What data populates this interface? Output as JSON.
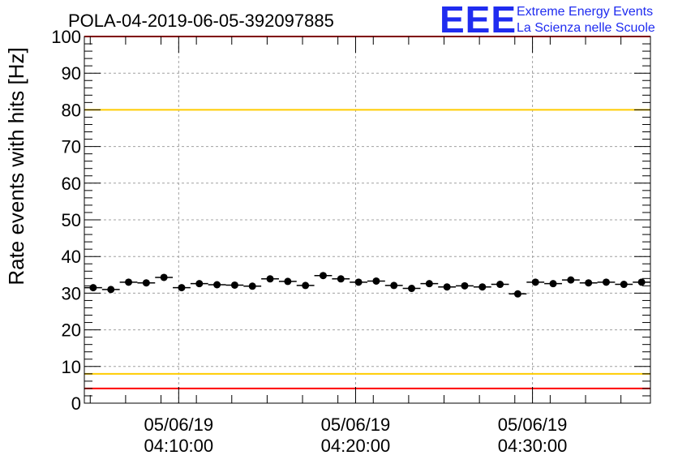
{
  "chart_data": {
    "type": "scatter",
    "title": "POLA-04-2019-06-05-392097885",
    "xlabel": "",
    "ylabel": "Rate events with hits [Hz]",
    "x_range": [
      "2019-06-05T04:04:40",
      "2019-06-05T04:36:40"
    ],
    "ylim": [
      0,
      100
    ],
    "y_ticks": [
      "0",
      "10",
      "20",
      "30",
      "40",
      "50",
      "60",
      "70",
      "80",
      "90",
      "100"
    ],
    "x_ticks": [
      {
        "time": "2019-06-05T04:10:00",
        "date_label": "05/06/19",
        "time_label": "04:10:00"
      },
      {
        "time": "2019-06-05T04:20:00",
        "date_label": "05/06/19",
        "time_label": "04:20:00"
      },
      {
        "time": "2019-06-05T04:30:00",
        "date_label": "05/06/19",
        "time_label": "04:30:00"
      }
    ],
    "grid": true,
    "reference_lines": [
      {
        "y": 100,
        "color": "#ff0000"
      },
      {
        "y": 80,
        "color": "#ffcc00"
      },
      {
        "y": 8,
        "color": "#ffcc00"
      },
      {
        "y": 4,
        "color": "#ff0000"
      }
    ],
    "series": [
      {
        "color": "#000000",
        "x": [
          "2019-06-05T04:05:10",
          "2019-06-05T04:06:10",
          "2019-06-05T04:07:10",
          "2019-06-05T04:08:10",
          "2019-06-05T04:09:10",
          "2019-06-05T04:10:10",
          "2019-06-05T04:11:10",
          "2019-06-05T04:12:10",
          "2019-06-05T04:13:10",
          "2019-06-05T04:14:10",
          "2019-06-05T04:15:10",
          "2019-06-05T04:16:10",
          "2019-06-05T04:17:10",
          "2019-06-05T04:18:10",
          "2019-06-05T04:19:10",
          "2019-06-05T04:20:10",
          "2019-06-05T04:21:10",
          "2019-06-05T04:22:10",
          "2019-06-05T04:23:10",
          "2019-06-05T04:24:10",
          "2019-06-05T04:25:10",
          "2019-06-05T04:26:10",
          "2019-06-05T04:27:10",
          "2019-06-05T04:28:10",
          "2019-06-05T04:29:10",
          "2019-06-05T04:30:10",
          "2019-06-05T04:31:10",
          "2019-06-05T04:32:10",
          "2019-06-05T04:33:10",
          "2019-06-05T04:34:10",
          "2019-06-05T04:35:10",
          "2019-06-05T04:36:10"
        ],
        "y": [
          31.5,
          31.0,
          33.0,
          32.8,
          34.3,
          31.5,
          32.6,
          32.3,
          32.2,
          31.9,
          33.9,
          33.2,
          32.1,
          34.8,
          33.9,
          33.0,
          33.3,
          32.1,
          31.3,
          32.6,
          31.7,
          32.0,
          31.7,
          32.4,
          29.8,
          33.0,
          32.6,
          33.6,
          32.8,
          33.0,
          32.4,
          33.0
        ]
      }
    ]
  },
  "logo": {
    "mark": "EEE",
    "line1": "Extreme Energy Events",
    "line2": "La Scienza nelle Scuole"
  }
}
